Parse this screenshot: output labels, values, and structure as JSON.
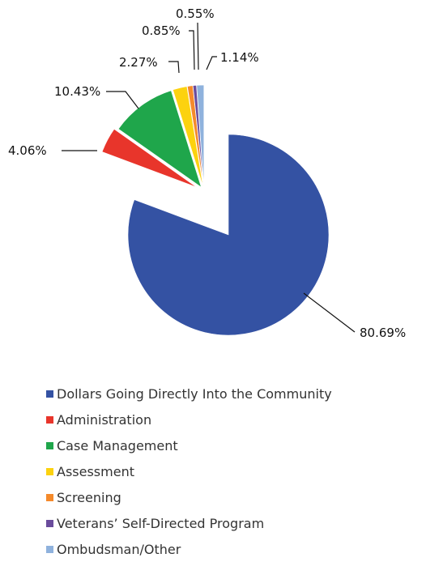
{
  "chart_data": {
    "type": "pie",
    "exploded": true,
    "categories": [
      "Dollars Going Directly Into the Community",
      "Administration",
      "Case Management",
      "Assessment",
      "Screening",
      "Veterans’ Self-Directed Program",
      "Ombudsman/Other"
    ],
    "values": [
      80.69,
      4.06,
      10.43,
      2.27,
      0.85,
      0.55,
      1.14
    ],
    "labels": [
      "80.69%",
      "4.06%",
      "10.43%",
      "2.27%",
      "0.85%",
      "0.55%",
      "1.14%"
    ],
    "colors": [
      "#3452a3",
      "#e8352b",
      "#1fa64b",
      "#fcd20f",
      "#f58a2b",
      "#6a4c9c",
      "#8fb2dd"
    ],
    "legend_position": "bottom"
  }
}
